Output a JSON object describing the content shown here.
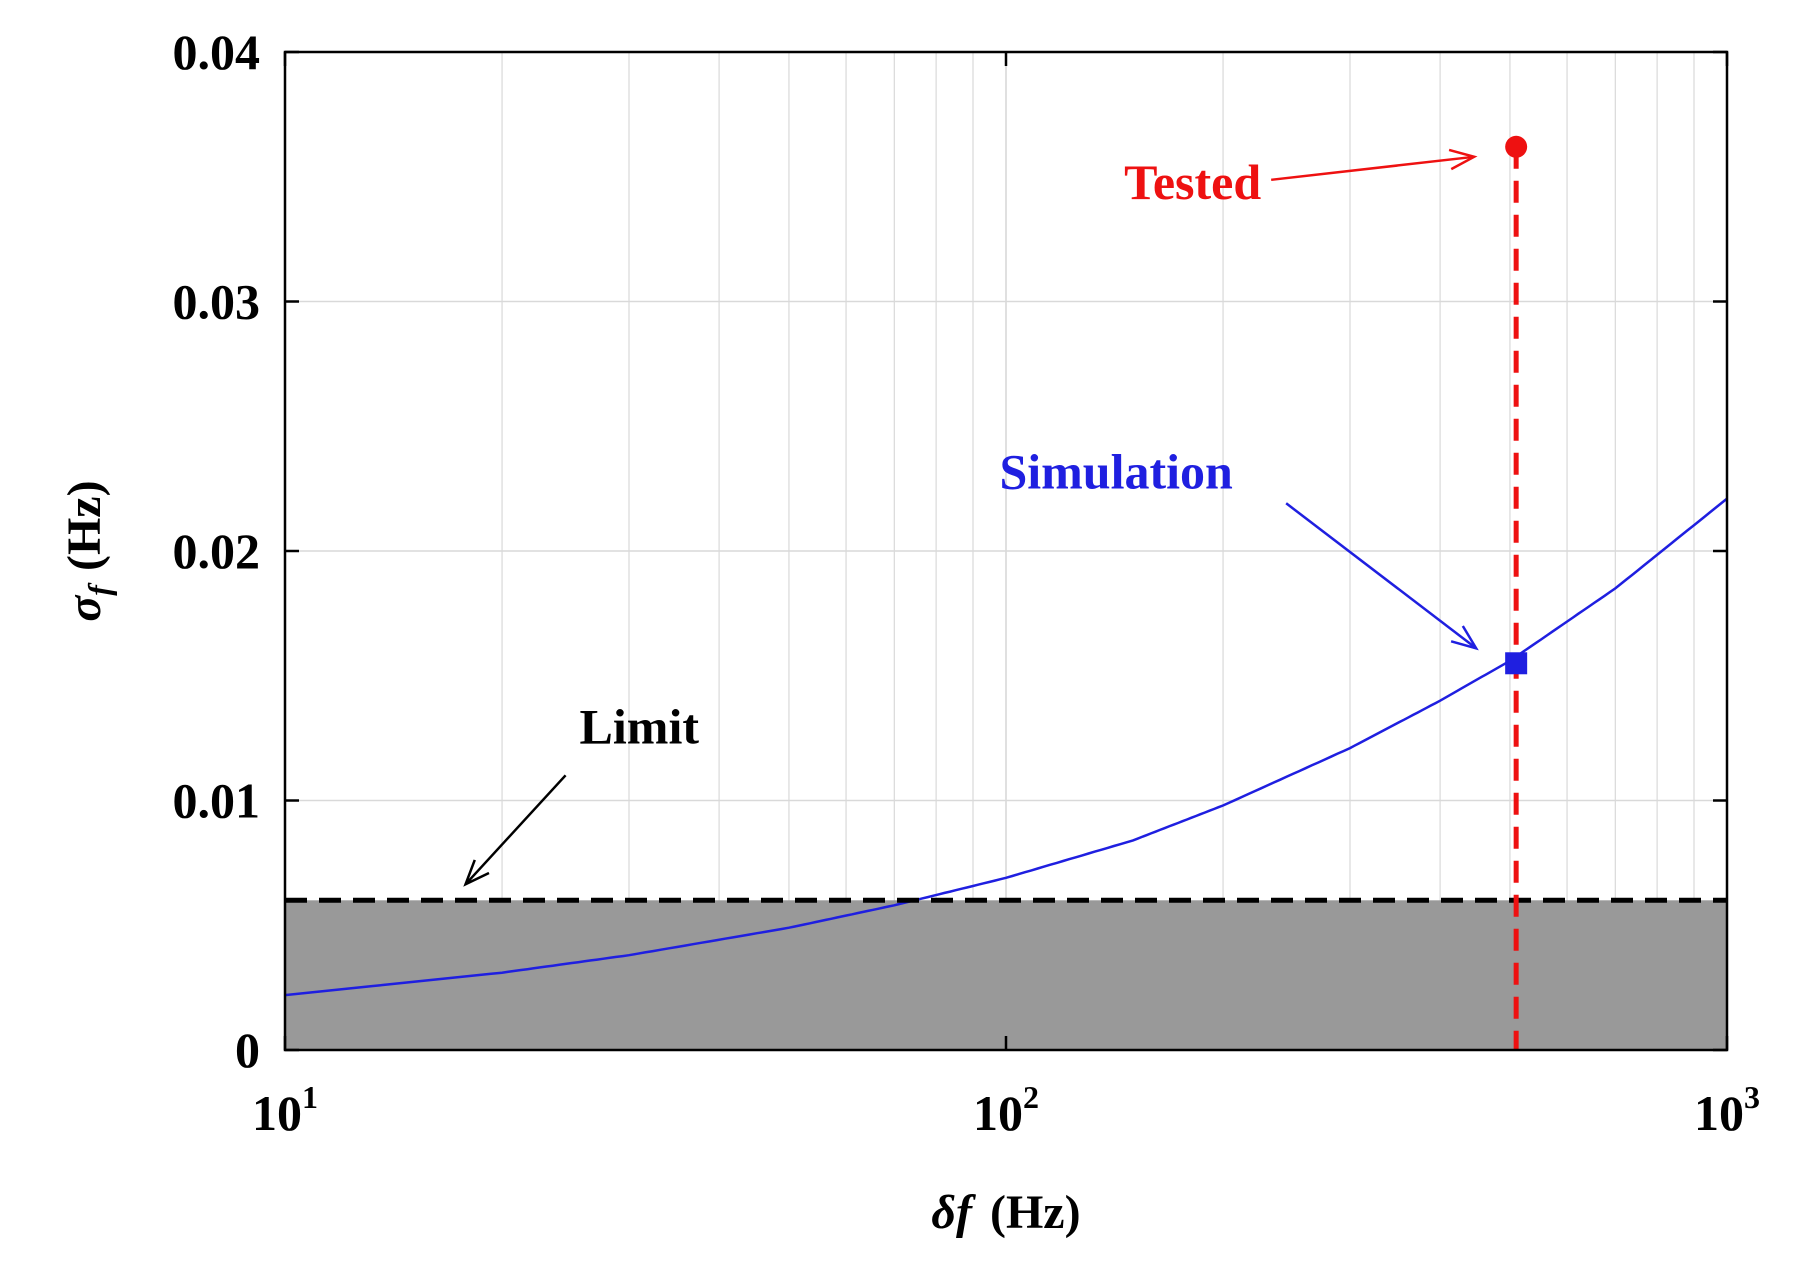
{
  "chart_data": {
    "type": "line",
    "x_scale": "log",
    "xlim": [
      10,
      1000
    ],
    "ylim": [
      0,
      0.04
    ],
    "grid": true,
    "xlabel": {
      "symbol": "δf",
      "unit": "(Hz)"
    },
    "ylabel": {
      "symbol": "σ",
      "subscript": "f",
      "unit": "(Hz)"
    },
    "x_ticks": [
      {
        "value": 10,
        "base": "10",
        "exp": "1"
      },
      {
        "value": 100,
        "base": "10",
        "exp": "2"
      },
      {
        "value": 1000,
        "base": "10",
        "exp": "3"
      }
    ],
    "y_ticks": [
      {
        "value": 0,
        "label": "0"
      },
      {
        "value": 0.01,
        "label": "0.01"
      },
      {
        "value": 0.02,
        "label": "0.02"
      },
      {
        "value": 0.03,
        "label": "0.03"
      },
      {
        "value": 0.04,
        "label": "0.04"
      }
    ],
    "limit": {
      "y": 0.006,
      "label": "Limit",
      "color": "#000000",
      "fill_color": "#999999"
    },
    "simulation": {
      "label": "Simulation",
      "color": "#1f1fe0",
      "x": [
        10,
        20,
        30,
        50,
        70,
        100,
        150,
        200,
        300,
        400,
        500,
        700,
        1000
      ],
      "y": [
        0.0022,
        0.0031,
        0.0038,
        0.0049,
        0.0058,
        0.0069,
        0.0084,
        0.0098,
        0.0121,
        0.014,
        0.0156,
        0.0185,
        0.0221
      ],
      "marker": {
        "x": 510,
        "y": 0.0155
      }
    },
    "tested": {
      "label": "Tested",
      "color": "#ee1111",
      "x": 510,
      "y": 0.0362
    }
  }
}
